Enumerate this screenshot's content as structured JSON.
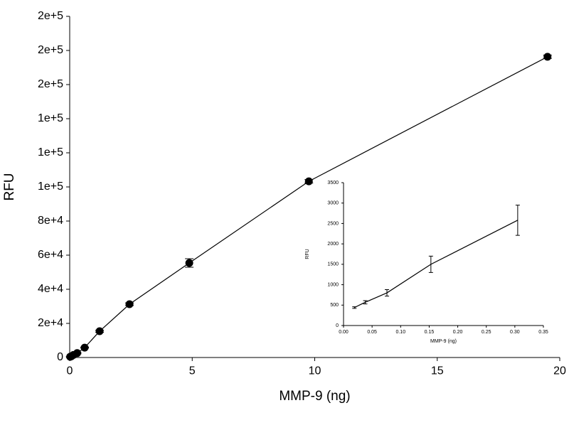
{
  "chart_data": [
    {
      "type": "line",
      "xlabel": "MMP-9 (ng)",
      "ylabel": "RFU",
      "x": [
        0.019,
        0.038,
        0.076,
        0.153,
        0.305,
        0.61,
        1.22,
        2.44,
        4.88,
        9.76,
        19.5
      ],
      "series": [
        {
          "color": "#000000",
          "values": [
            440,
            570,
            800,
            1500,
            2580,
            5800,
            15400,
            31250,
            55400,
            103300,
            176300
          ],
          "errors": [
            20,
            40,
            80,
            200,
            370,
            300,
            600,
            800,
            2500,
            1000,
            1000
          ]
        }
      ],
      "xlim": [
        0,
        20
      ],
      "xticks": [
        0,
        5,
        10,
        15,
        20
      ],
      "ylim": [
        0,
        200000
      ],
      "yticks": [
        0,
        {
          "value": 20000,
          "label": "2e+4"
        },
        {
          "value": 40000,
          "label": "4e+4"
        },
        {
          "value": 60000,
          "label": "6e+4"
        },
        {
          "value": 80000,
          "label": "8e+4"
        },
        {
          "value": 100000,
          "label": "1e+5"
        },
        {
          "value": 120000,
          "label": "1e+5"
        },
        {
          "value": 140000,
          "label": "1e+5"
        },
        {
          "value": 160000,
          "label": "2e+5"
        },
        {
          "value": 180000,
          "label": "2e+5"
        },
        {
          "value": 200000,
          "label": "2e+5"
        }
      ],
      "marker": "circle"
    },
    {
      "type": "line",
      "xlabel": "MMP-9 (ng)",
      "ylabel": "RFU",
      "x": [
        0.019,
        0.038,
        0.076,
        0.153,
        0.305
      ],
      "series": [
        {
          "color": "#000000",
          "values": [
            440,
            570,
            800,
            1500,
            2580
          ],
          "errors": [
            20,
            40,
            80,
            200,
            370
          ]
        }
      ],
      "xlim": [
        0,
        0.35
      ],
      "xticks": [
        {
          "value": 0,
          "label": "0.00"
        },
        {
          "value": 0.05,
          "label": "0.05"
        },
        {
          "value": 0.1,
          "label": "0.10"
        },
        {
          "value": 0.15,
          "label": "0.15"
        },
        {
          "value": 0.2,
          "label": "0.20"
        },
        {
          "value": 0.25,
          "label": "0.25"
        },
        {
          "value": 0.3,
          "label": "0.30"
        },
        {
          "value": 0.35,
          "label": "0.35"
        }
      ],
      "ylim": [
        0,
        3500
      ],
      "yticks": [
        0,
        500,
        1000,
        1500,
        2000,
        2500,
        3000,
        3500
      ],
      "marker": "none"
    }
  ]
}
